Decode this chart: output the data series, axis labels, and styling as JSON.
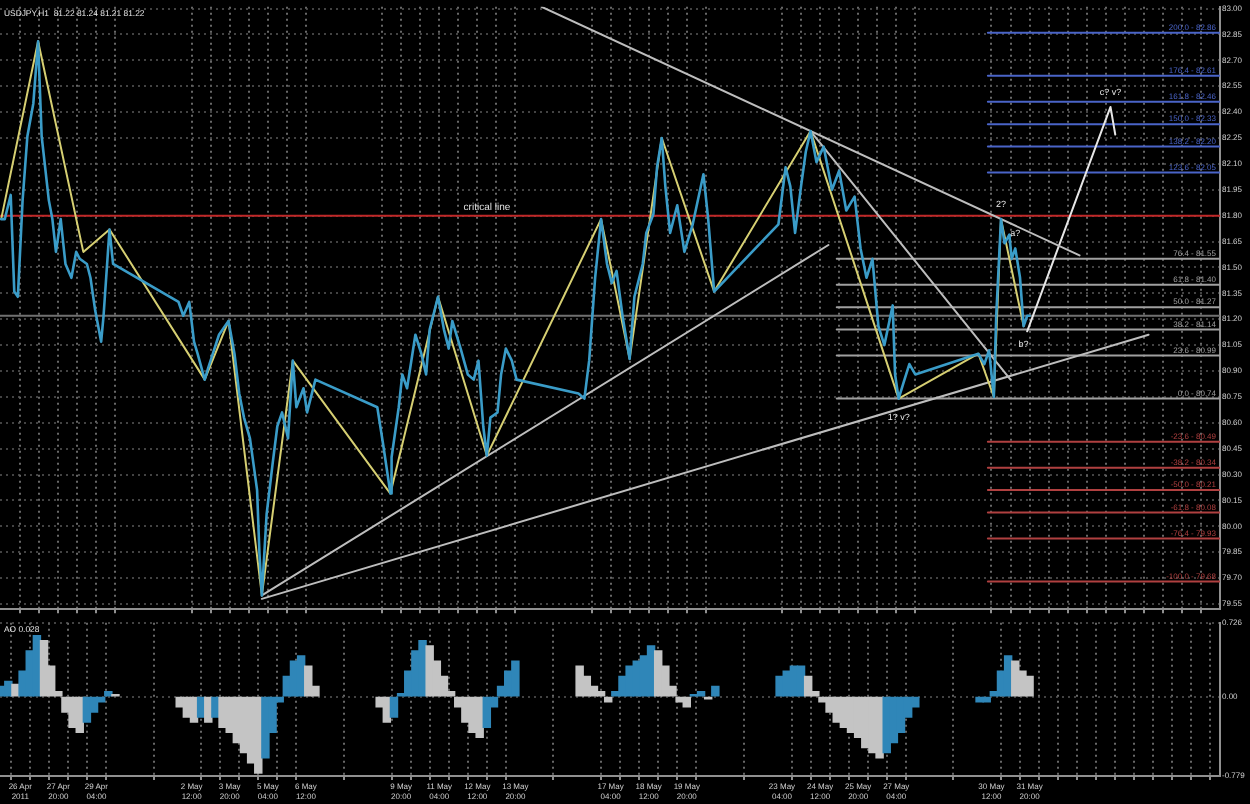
{
  "chart_data": [
    {
      "type": "line",
      "title": "USDJPY,H1  81.22 81.24 81.21 81.22",
      "tick_labels": "y",
      "grid": true,
      "marker": "none",
      "xlim": [
        "2011-04-25T19:00",
        "2011-06-07T12:00"
      ],
      "xticks": [
        {
          "value": "2011-04-26T12:00",
          "label": null
        },
        {
          "value": "2011-04-27T04:00",
          "label": null
        },
        {
          "value": "2011-04-27T20:00",
          "label": null
        },
        {
          "value": "2011-04-28T12:00",
          "label": null
        },
        {
          "value": "2011-04-29T04:00",
          "label": null
        },
        {
          "value": "2011-04-29T20:00",
          "label": null
        },
        {
          "value": "2011-05-02T12:00",
          "label": null
        },
        {
          "value": "2011-05-03T04:00",
          "label": null
        },
        {
          "value": "2011-05-03T20:00",
          "label": null
        },
        {
          "value": "2011-05-04T12:00",
          "label": null
        },
        {
          "value": "2011-05-05T04:00",
          "label": null
        },
        {
          "value": "2011-05-05T20:00",
          "label": null
        },
        {
          "value": "2011-05-06T12:00",
          "label": null
        },
        {
          "value": "2011-05-09T04:00",
          "label": null
        },
        {
          "value": "2011-05-09T20:00",
          "label": null
        },
        {
          "value": "2011-05-10T12:00",
          "label": null
        },
        {
          "value": "2011-05-11T04:00",
          "label": null
        },
        {
          "value": "2011-05-11T20:00",
          "label": null
        },
        {
          "value": "2011-05-12T12:00",
          "label": null
        },
        {
          "value": "2011-05-13T04:00",
          "label": null
        },
        {
          "value": "2011-05-13T20:00",
          "label": null
        },
        {
          "value": "2011-05-16T12:00",
          "label": null
        },
        {
          "value": "2011-05-17T04:00",
          "label": null
        },
        {
          "value": "2011-05-17T20:00",
          "label": null
        },
        {
          "value": "2011-05-18T12:00",
          "label": null
        },
        {
          "value": "2011-05-19T04:00",
          "label": null
        },
        {
          "value": "2011-05-19T20:00",
          "label": null
        },
        {
          "value": "2011-05-20T12:00",
          "label": null
        },
        {
          "value": "2011-05-23T04:00",
          "label": null
        },
        {
          "value": "2011-05-23T20:00",
          "label": null
        },
        {
          "value": "2011-05-24T12:00",
          "label": null
        },
        {
          "value": "2011-05-25T04:00",
          "label": null
        },
        {
          "value": "2011-05-25T20:00",
          "label": null
        },
        {
          "value": "2011-05-26T12:00",
          "label": null
        },
        {
          "value": "2011-05-27T04:00",
          "label": null
        },
        {
          "value": "2011-05-27T20:00",
          "label": null
        },
        {
          "value": "2011-05-30T12:00",
          "label": null
        },
        {
          "value": "2011-05-31T04:00",
          "label": null
        },
        {
          "value": "2011-05-31T20:00",
          "label": null
        },
        {
          "value": "2011-06-01T12:00",
          "label": null
        },
        {
          "value": "2011-06-02T04:00",
          "label": null
        },
        {
          "value": "2011-06-02T20:00",
          "label": null
        },
        {
          "value": "2011-06-03T12:00",
          "label": null
        },
        {
          "value": "2011-06-04T04:00",
          "label": null
        },
        {
          "value": "2011-06-04T20:00",
          "label": null
        },
        {
          "value": "2011-06-05T12:00",
          "label": null
        },
        {
          "value": "2011-06-06T04:00",
          "label": null
        },
        {
          "value": "2011-06-06T20:00",
          "label": null
        }
      ],
      "ylim": [
        79.52,
        83.01
      ],
      "yticks": [
        79.55,
        {
          "value": 79.7,
          "label": "79.70"
        },
        79.85,
        {
          "value": 80,
          "label": "80.00"
        },
        80.15,
        {
          "value": 80.3,
          "label": "80.30"
        },
        80.45,
        {
          "value": 80.6,
          "label": "80.60"
        },
        80.75,
        {
          "value": 80.9,
          "label": "80.90"
        },
        81.05,
        {
          "value": 81.2,
          "label": "81.20"
        },
        81.35,
        {
          "value": 81.5,
          "label": "81.50"
        },
        81.65,
        {
          "value": 81.8,
          "label": "81.80"
        },
        81.95,
        {
          "value": 82.1,
          "label": "82.10"
        },
        82.25,
        {
          "value": 82.4,
          "label": "82.40"
        },
        82.55,
        {
          "value": 82.7,
          "label": "82.70"
        },
        82.85,
        {
          "value": 83,
          "label": "83.00"
        }
      ],
      "series": [
        {
          "color": "#3a9cc8",
          "x": [
            "2011-04-25T20:00",
            "2011-04-25T23:00",
            "2011-04-26T04:00",
            "2011-04-26T07:00",
            "2011-04-26T10:00",
            "2011-04-26T14:00",
            "2011-04-26T18:00",
            "2011-04-26T23:00",
            "2011-04-27T03:00",
            "2011-04-27T06:00",
            "2011-04-27T12:00",
            "2011-04-27T15:00",
            "2011-04-27T18:00",
            "2011-04-27T22:00",
            "2011-04-28T02:00",
            "2011-04-28T07:00",
            "2011-04-28T11:00",
            "2011-04-28T14:00",
            "2011-04-28T20:00",
            "2011-04-28T23:00",
            "2011-04-29T03:00",
            "2011-04-29T08:00",
            "2011-04-29T10:00",
            "2011-04-29T15:00",
            "2011-04-29T18:00",
            "2011-05-02T01:00",
            "2011-05-02T05:00",
            "2011-05-02T10:00",
            "2011-05-02T14:00",
            "2011-05-02T17:00",
            "2011-05-02T23:00",
            "2011-05-03T02:00",
            "2011-05-03T11:00",
            "2011-05-03T19:00",
            "2011-05-04T00:00",
            "2011-05-04T04:00",
            "2011-05-04T08:00",
            "2011-05-04T13:00",
            "2011-05-04T19:00",
            "2011-05-04T21:00",
            "2011-05-04T23:00",
            "2011-05-05T03:00",
            "2011-05-05T08:00",
            "2011-05-05T12:00",
            "2011-05-05T16:00",
            "2011-05-05T21:00",
            "2011-05-06T01:00",
            "2011-05-06T04:00",
            "2011-05-06T10:00",
            "2011-05-06T13:00",
            "2011-05-06T20:00",
            "2011-05-09T00:00",
            "2011-05-09T05:00",
            "2011-05-09T11:00",
            "2011-05-09T12:00",
            "2011-05-09T18:00",
            "2011-05-09T21:00",
            "2011-05-10T01:00",
            "2011-05-10T08:00",
            "2011-05-10T13:00",
            "2011-05-10T17:00",
            "2011-05-10T20:00",
            "2011-05-11T03:00",
            "2011-05-11T08:00",
            "2011-05-11T12:00",
            "2011-05-11T15:00",
            "2011-05-11T22:00",
            "2011-05-12T04:00",
            "2011-05-12T09:00",
            "2011-05-12T13:00",
            "2011-05-12T17:00",
            "2011-05-12T20:00",
            "2011-05-12T23:00",
            "2011-05-13T05:00",
            "2011-05-13T08:00",
            "2011-05-13T12:00",
            "2011-05-13T17:00",
            "2011-05-13T21:00",
            "2011-05-16T01:00",
            "2011-05-16T06:00",
            "2011-05-16T10:00",
            "2011-05-16T15:00",
            "2011-05-16T20:00",
            "2011-05-17T01:00",
            "2011-05-17T05:00",
            "2011-05-17T09:00",
            "2011-05-17T14:00",
            "2011-05-17T20:00",
            "2011-05-18T00:00",
            "2011-05-18T07:00",
            "2011-05-18T10:00",
            "2011-05-18T16:00",
            "2011-05-18T19:00",
            "2011-05-18T23:00",
            "2011-05-19T02:00",
            "2011-05-19T06:00",
            "2011-05-19T12:00",
            "2011-05-19T18:00",
            "2011-05-20T01:00",
            "2011-05-20T10:00",
            "2011-05-20T14:00",
            "2011-05-20T19:00",
            "2011-05-23T01:00",
            "2011-05-23T07:00",
            "2011-05-23T11:00",
            "2011-05-23T15:00",
            "2011-05-23T20:00",
            "2011-05-24T00:00",
            "2011-05-24T04:00",
            "2011-05-24T09:00",
            "2011-05-24T15:00",
            "2011-05-24T22:00",
            "2011-05-25T04:00",
            "2011-05-25T10:00",
            "2011-05-25T17:00",
            "2011-05-25T22:00",
            "2011-05-26T03:00",
            "2011-05-26T08:00",
            "2011-05-26T13:00",
            "2011-05-26T18:00",
            "2011-05-27T01:00",
            "2011-05-27T03:00",
            "2011-05-27T06:00",
            "2011-05-27T10:00",
            "2011-05-27T15:00",
            "2011-05-27T20:00",
            "2011-05-30T01:00",
            "2011-05-30T06:00",
            "2011-05-30T10:00",
            "2011-05-30T14:00",
            "2011-05-30T16:00",
            "2011-05-30T20:00",
            "2011-05-30T23:00",
            "2011-05-31T03:00",
            "2011-05-31T05:00",
            "2011-05-31T08:00",
            "2011-05-31T12:00",
            "2011-05-31T15:00",
            "2011-05-31T18:00",
            "2011-05-31T20:00"
          ],
          "values": [
            81.78,
            81.78,
            81.92,
            81.36,
            81.33,
            81.89,
            82.26,
            82.45,
            82.81,
            82.26,
            81.89,
            81.78,
            81.59,
            81.78,
            81.52,
            81.44,
            81.59,
            81.55,
            81.52,
            81.44,
            81.25,
            81.07,
            81.22,
            81.72,
            81.52,
            81.3,
            81.22,
            81.3,
            81.07,
            81.0,
            80.85,
            80.92,
            81.11,
            81.19,
            81.0,
            80.77,
            80.63,
            80.51,
            80.21,
            79.84,
            79.6,
            80.07,
            80.36,
            80.58,
            80.66,
            80.51,
            80.96,
            80.69,
            80.8,
            80.66,
            80.85,
            80.69,
            80.47,
            80.19,
            80.4,
            80.69,
            80.88,
            80.8,
            81.11,
            81.0,
            80.88,
            81.14,
            81.33,
            81.14,
            81.03,
            81.19,
            81.03,
            80.88,
            80.85,
            80.96,
            80.58,
            80.41,
            80.63,
            80.66,
            80.88,
            81.03,
            80.96,
            80.85,
            80.77,
            80.74,
            80.96,
            81.44,
            81.78,
            81.52,
            81.41,
            81.48,
            81.22,
            80.97,
            81.33,
            81.52,
            81.7,
            81.81,
            82.08,
            82.25,
            81.97,
            81.7,
            81.86,
            81.59,
            81.75,
            82.04,
            81.78,
            81.36,
            81.75,
            82.08,
            81.97,
            81.7,
            81.97,
            82.17,
            82.29,
            82.11,
            82.2,
            81.95,
            82.06,
            81.83,
            81.91,
            81.61,
            81.44,
            81.55,
            81.16,
            81.05,
            81.28,
            80.88,
            80.74,
            80.83,
            80.94,
            80.88,
            81.0,
            80.94,
            81.02,
            80.75,
            81.22,
            81.78,
            81.64,
            81.69,
            81.55,
            81.61,
            81.44,
            81.16,
            81.22,
            81.22
          ]
        },
        {
          "color": "#d6cf72",
          "x": [
            "2011-04-25T20:00",
            "2011-04-27T03:00",
            "2011-04-28T17:00",
            "2011-04-29T15:00",
            "2011-05-02T23:00",
            "2011-05-03T19:00",
            "2011-05-04T23:00",
            "2011-05-06T01:00",
            "2011-05-09T11:00",
            "2011-05-11T03:00",
            "2011-05-12T20:00",
            "2011-05-16T20:00",
            "2011-05-17T20:00",
            "2011-05-18T23:00",
            "2011-05-20T19:00",
            "2011-05-24T04:00",
            "2011-05-27T06:00",
            "2011-05-30T01:00",
            "2011-05-30T14:00",
            "2011-05-30T20:00",
            "2011-05-31T15:00"
          ],
          "values": [
            81.78,
            82.81,
            81.59,
            81.72,
            80.85,
            81.19,
            79.6,
            80.96,
            80.19,
            81.33,
            80.41,
            81.78,
            80.97,
            82.25,
            81.36,
            82.29,
            80.74,
            81.0,
            80.75,
            81.78,
            81.16
          ]
        },
        {
          "color": "#bdbdbd",
          "x": [
            "2011-05-14T18:00",
            "2011-06-02T14:00"
          ],
          "values": [
            83.01,
            81.57
          ]
        },
        {
          "color": "#bdbdbd",
          "x": [
            "2011-05-04T23:00",
            "2011-06-05T00:00"
          ],
          "values": [
            79.58,
            81.11
          ]
        },
        {
          "color": "#bdbdbd",
          "x": [
            "2011-05-04T23:00",
            "2011-05-24T19:00"
          ],
          "values": [
            79.6,
            81.63
          ]
        },
        {
          "color": "#bdbdbd",
          "x": [
            "2011-05-24T04:00",
            "2011-05-31T04:00"
          ],
          "values": [
            82.29,
            80.85
          ]
        },
        {
          "color": "#e6e6e6",
          "x": [
            "2011-05-31T18:00",
            "2011-06-03T16:00",
            "2011-06-03T20:00"
          ],
          "values": [
            81.13,
            82.43,
            82.27
          ]
        },
        {
          "name": "200.0 - 82.86",
          "color": "#4a64c8",
          "x": [
            "2011-05-30T09:00",
            "2011-06-07T12:00"
          ],
          "values": [
            82.86,
            82.86
          ]
        },
        {
          "name": "176.4 - 82.61",
          "color": "#4a64c8",
          "x": [
            "2011-05-30T09:00",
            "2011-06-07T12:00"
          ],
          "values": [
            82.61,
            82.61
          ]
        },
        {
          "name": "161.8 - 82.46",
          "color": "#4a64c8",
          "x": [
            "2011-05-30T09:00",
            "2011-06-07T12:00"
          ],
          "values": [
            82.46,
            82.46
          ]
        },
        {
          "name": "150.0 - 82.33",
          "color": "#4a64c8",
          "x": [
            "2011-05-30T09:00",
            "2011-06-07T12:00"
          ],
          "values": [
            82.33,
            82.33
          ]
        },
        {
          "name": "138.2 - 82.20",
          "color": "#4a64c8",
          "x": [
            "2011-05-30T09:00",
            "2011-06-07T12:00"
          ],
          "values": [
            82.2,
            82.2
          ]
        },
        {
          "name": "123.6 - 82.05",
          "color": "#4a64c8",
          "x": [
            "2011-05-30T09:00",
            "2011-06-07T12:00"
          ],
          "values": [
            82.05,
            82.05
          ]
        },
        {
          "name": "76.4 - 81.55",
          "color": "#a0a0a0",
          "x": [
            "2011-05-25T02:00",
            "2011-06-07T12:00"
          ],
          "values": [
            81.55,
            81.55
          ]
        },
        {
          "name": "61.8 - 81.40",
          "color": "#a0a0a0",
          "x": [
            "2011-05-25T02:00",
            "2011-06-07T12:00"
          ],
          "values": [
            81.4,
            81.4
          ]
        },
        {
          "name": "50.0 - 81.27",
          "color": "#a0a0a0",
          "x": [
            "2011-05-25T02:00",
            "2011-06-07T12:00"
          ],
          "values": [
            81.27,
            81.27
          ]
        },
        {
          "name": "38.2 - 81.14",
          "color": "#a0a0a0",
          "x": [
            "2011-05-25T02:00",
            "2011-06-07T12:00"
          ],
          "values": [
            81.14,
            81.14
          ]
        },
        {
          "name": "23.6 - 80.99",
          "color": "#a0a0a0",
          "x": [
            "2011-05-25T02:00",
            "2011-06-07T12:00"
          ],
          "values": [
            80.99,
            80.99
          ]
        },
        {
          "name": "0.0 - 80.74",
          "color": "#a0a0a0",
          "x": [
            "2011-05-25T02:00",
            "2011-06-07T12:00"
          ],
          "values": [
            80.74,
            80.74
          ]
        },
        {
          "name": "-23.6 - 80.49",
          "color": "#b04040",
          "x": [
            "2011-05-30T09:00",
            "2011-06-07T12:00"
          ],
          "values": [
            80.49,
            80.49
          ]
        },
        {
          "name": "-38.2 - 80.34",
          "color": "#b04040",
          "x": [
            "2011-05-30T09:00",
            "2011-06-07T12:00"
          ],
          "values": [
            80.34,
            80.34
          ]
        },
        {
          "name": "-50.0 - 80.21",
          "color": "#b04040",
          "x": [
            "2011-05-30T09:00",
            "2011-06-07T12:00"
          ],
          "values": [
            80.21,
            80.21
          ]
        },
        {
          "name": "-61.8 - 80.08",
          "color": "#b04040",
          "x": [
            "2011-05-30T09:00",
            "2011-06-07T12:00"
          ],
          "values": [
            80.08,
            80.08
          ]
        },
        {
          "name": "-76.4 - 79.93",
          "color": "#b04040",
          "x": [
            "2011-05-30T09:00",
            "2011-06-07T12:00"
          ],
          "values": [
            79.93,
            79.93
          ]
        },
        {
          "name": "-100.0 - 79.68",
          "color": "#b04040",
          "x": [
            "2011-05-30T09:00",
            "2011-06-07T12:00"
          ],
          "values": [
            79.68,
            79.68
          ]
        }
      ],
      "ref_lines": [
        {
          "axis": "y",
          "value": 81.8,
          "label": "critical line",
          "color": "#c02828"
        },
        {
          "axis": "y",
          "value": 81.22,
          "color": "#707070"
        }
      ],
      "annotations": [
        {
          "text": "1? v?",
          "x": "2011-05-27T06:00",
          "y": 80.74
        },
        {
          "text": "2?",
          "x": "2011-05-30T20:00",
          "y": 81.78
        },
        {
          "text": "a?",
          "x": "2011-05-31T08:00",
          "y": 81.61
        },
        {
          "text": "b?",
          "x": "2011-05-31T15:00",
          "y": 81.16
        },
        {
          "text": "c? v?",
          "x": "2011-06-03T16:00",
          "y": 82.43
        }
      ]
    },
    {
      "type": "bar",
      "title": "AO 0.028",
      "grid": true,
      "xlim": [
        "2011-04-25T19:00",
        "2011-06-07T12:00"
      ],
      "xticks": [
        {
          "value": "2011-04-26T12:00",
          "label": "26 Apr 2011"
        },
        {
          "value": "2011-04-27T04:00",
          "label": null
        },
        {
          "value": "2011-04-27T20:00",
          "label": "27 Apr 20:00"
        },
        {
          "value": "2011-04-28T12:00",
          "label": null
        },
        {
          "value": "2011-04-29T04:00",
          "label": "29 Apr 04:00"
        },
        {
          "value": "2011-04-29T20:00",
          "label": null
        },
        {
          "value": "2011-05-02T12:00",
          "label": "2 May 12:00"
        },
        {
          "value": "2011-05-03T04:00",
          "label": null
        },
        {
          "value": "2011-05-03T20:00",
          "label": "3 May 20:00"
        },
        {
          "value": "2011-05-04T12:00",
          "label": null
        },
        {
          "value": "2011-05-05T04:00",
          "label": "5 May 04:00"
        },
        {
          "value": "2011-05-05T20:00",
          "label": null
        },
        {
          "value": "2011-05-06T12:00",
          "label": "6 May 12:00"
        },
        {
          "value": "2011-05-09T04:00",
          "label": null
        },
        {
          "value": "2011-05-09T20:00",
          "label": "9 May 20:00"
        },
        {
          "value": "2011-05-10T12:00",
          "label": null
        },
        {
          "value": "2011-05-11T04:00",
          "label": "11 May 04:00"
        },
        {
          "value": "2011-05-11T20:00",
          "label": null
        },
        {
          "value": "2011-05-12T12:00",
          "label": "12 May 12:00"
        },
        {
          "value": "2011-05-13T04:00",
          "label": null
        },
        {
          "value": "2011-05-13T20:00",
          "label": "13 May 20:00"
        },
        {
          "value": "2011-05-16T12:00",
          "label": null
        },
        {
          "value": "2011-05-17T04:00",
          "label": "17 May 04:00"
        },
        {
          "value": "2011-05-17T20:00",
          "label": null
        },
        {
          "value": "2011-05-18T12:00",
          "label": "18 May 12:00"
        },
        {
          "value": "2011-05-19T04:00",
          "label": null
        },
        {
          "value": "2011-05-19T20:00",
          "label": "19 May 20:00"
        },
        {
          "value": "2011-05-20T12:00",
          "label": null
        },
        {
          "value": "2011-05-23T04:00",
          "label": "23 May 04:00"
        },
        {
          "value": "2011-05-23T20:00",
          "label": null
        },
        {
          "value": "2011-05-24T12:00",
          "label": "24 May 12:00"
        },
        {
          "value": "2011-05-25T04:00",
          "label": null
        },
        {
          "value": "2011-05-25T20:00",
          "label": "25 May 20:00"
        },
        {
          "value": "2011-05-26T12:00",
          "label": null
        },
        {
          "value": "2011-05-27T04:00",
          "label": "27 May 04:00"
        },
        {
          "value": "2011-05-27T20:00",
          "label": null
        },
        {
          "value": "2011-05-30T12:00",
          "label": "30 May 12:00"
        },
        {
          "value": "2011-05-31T04:00",
          "label": null
        },
        {
          "value": "2011-05-31T20:00",
          "label": "31 May 20:00"
        },
        {
          "value": "2011-06-01T12:00",
          "label": null
        },
        {
          "value": "2011-06-02T04:00",
          "label": null
        },
        {
          "value": "2011-06-02T20:00",
          "label": null
        },
        {
          "value": "2011-06-03T12:00",
          "label": null
        },
        {
          "value": "2011-06-04T04:00",
          "label": null
        },
        {
          "value": "2011-06-04T20:00",
          "label": null
        },
        {
          "value": "2011-06-05T12:00",
          "label": null
        },
        {
          "value": "2011-06-06T04:00",
          "label": null
        },
        {
          "value": "2011-06-06T20:00",
          "label": null
        }
      ],
      "ylim": [
        -0.779,
        0.726
      ],
      "yticks": [
        0.726,
        {
          "value": 0,
          "label": "0.00"
        },
        -0.779
      ],
      "x": [
        "2011-04-25T20:00",
        "2011-04-26T02:00",
        "2011-04-26T08:00",
        "2011-04-26T14:00",
        "2011-04-26T20:00",
        "2011-04-27T02:00",
        "2011-04-27T08:00",
        "2011-04-27T14:00",
        "2011-04-27T20:00",
        "2011-04-28T02:00",
        "2011-04-28T08:00",
        "2011-04-28T14:00",
        "2011-04-28T20:00",
        "2011-04-29T02:00",
        "2011-04-29T08:00",
        "2011-04-29T14:00",
        "2011-04-29T20:00",
        "2011-05-02T02:00",
        "2011-05-02T08:00",
        "2011-05-02T14:00",
        "2011-05-02T20:00",
        "2011-05-03T02:00",
        "2011-05-03T08:00",
        "2011-05-03T14:00",
        "2011-05-03T20:00",
        "2011-05-04T02:00",
        "2011-05-04T08:00",
        "2011-05-04T14:00",
        "2011-05-04T20:00",
        "2011-05-05T02:00",
        "2011-05-05T08:00",
        "2011-05-05T14:00",
        "2011-05-05T20:00",
        "2011-05-06T02:00",
        "2011-05-06T08:00",
        "2011-05-06T14:00",
        "2011-05-06T20:00",
        "2011-05-09T02:00",
        "2011-05-09T08:00",
        "2011-05-09T14:00",
        "2011-05-09T20:00",
        "2011-05-10T02:00",
        "2011-05-10T08:00",
        "2011-05-10T14:00",
        "2011-05-10T20:00",
        "2011-05-11T02:00",
        "2011-05-11T08:00",
        "2011-05-11T14:00",
        "2011-05-11T20:00",
        "2011-05-12T02:00",
        "2011-05-12T08:00",
        "2011-05-12T14:00",
        "2011-05-12T20:00",
        "2011-05-13T02:00",
        "2011-05-13T08:00",
        "2011-05-13T14:00",
        "2011-05-13T20:00",
        "2011-05-16T02:00",
        "2011-05-16T08:00",
        "2011-05-16T14:00",
        "2011-05-16T20:00",
        "2011-05-17T02:00",
        "2011-05-17T08:00",
        "2011-05-17T14:00",
        "2011-05-17T20:00",
        "2011-05-18T02:00",
        "2011-05-18T08:00",
        "2011-05-18T14:00",
        "2011-05-18T20:00",
        "2011-05-19T02:00",
        "2011-05-19T08:00",
        "2011-05-19T14:00",
        "2011-05-19T20:00",
        "2011-05-20T02:00",
        "2011-05-20T08:00",
        "2011-05-20T14:00",
        "2011-05-20T20:00",
        "2011-05-23T02:00",
        "2011-05-23T08:00",
        "2011-05-23T14:00",
        "2011-05-23T20:00",
        "2011-05-24T02:00",
        "2011-05-24T08:00",
        "2011-05-24T14:00",
        "2011-05-24T20:00",
        "2011-05-25T02:00",
        "2011-05-25T08:00",
        "2011-05-25T14:00",
        "2011-05-25T20:00",
        "2011-05-26T02:00",
        "2011-05-26T08:00",
        "2011-05-26T14:00",
        "2011-05-26T20:00",
        "2011-05-27T02:00",
        "2011-05-27T08:00",
        "2011-05-27T14:00",
        "2011-05-27T20:00",
        "2011-05-30T02:00",
        "2011-05-30T08:00",
        "2011-05-30T14:00",
        "2011-05-30T20:00",
        "2011-05-31T02:00",
        "2011-05-31T08:00",
        "2011-05-31T14:00",
        "2011-05-31T20:00"
      ],
      "values": [
        0.1,
        0.15,
        0.12,
        0.25,
        0.45,
        0.6,
        0.55,
        0.3,
        0.05,
        -0.15,
        -0.3,
        -0.35,
        -0.25,
        -0.15,
        -0.05,
        0.05,
        0.02,
        -0.1,
        -0.2,
        -0.25,
        -0.2,
        -0.25,
        -0.2,
        -0.3,
        -0.35,
        -0.45,
        -0.55,
        -0.65,
        -0.75,
        -0.6,
        -0.35,
        -0.05,
        0.2,
        0.35,
        0.4,
        0.3,
        0.1,
        -0.1,
        -0.25,
        -0.2,
        0.03,
        0.25,
        0.45,
        0.55,
        0.5,
        0.35,
        0.2,
        0.05,
        -0.1,
        -0.25,
        -0.35,
        -0.4,
        -0.3,
        -0.1,
        0.1,
        0.25,
        0.35,
        0.3,
        0.2,
        0.1,
        0.05,
        -0.05,
        0.05,
        0.2,
        0.3,
        0.35,
        0.4,
        0.5,
        0.45,
        0.3,
        0.1,
        -0.05,
        -0.1,
        0.02,
        0.05,
        -0.02,
        0.1,
        0.2,
        0.25,
        0.3,
        0.3,
        0.2,
        0.05,
        -0.05,
        -0.15,
        -0.25,
        -0.3,
        -0.35,
        -0.4,
        -0.5,
        -0.55,
        -0.6,
        -0.55,
        -0.45,
        -0.35,
        -0.2,
        -0.1,
        -0.05,
        -0.05,
        0.05,
        0.25,
        0.4,
        0.35,
        0.25,
        0.2
      ],
      "colors": [
        "#2f86b8",
        "#2f86b8",
        "#c4c4c4",
        "#2f86b8",
        "#2f86b8",
        "#2f86b8",
        "#c4c4c4",
        "#c4c4c4",
        "#c4c4c4",
        "#c4c4c4",
        "#c4c4c4",
        "#c4c4c4",
        "#2f86b8",
        "#2f86b8",
        "#2f86b8",
        "#2f86b8",
        "#c4c4c4",
        "#c4c4c4",
        "#c4c4c4",
        "#c4c4c4",
        "#2f86b8",
        "#c4c4c4",
        "#2f86b8",
        "#c4c4c4",
        "#c4c4c4",
        "#c4c4c4",
        "#c4c4c4",
        "#c4c4c4",
        "#c4c4c4",
        "#2f86b8",
        "#2f86b8",
        "#2f86b8",
        "#2f86b8",
        "#2f86b8",
        "#2f86b8",
        "#c4c4c4",
        "#c4c4c4",
        "#c4c4c4",
        "#c4c4c4",
        "#2f86b8",
        "#2f86b8",
        "#2f86b8",
        "#2f86b8",
        "#2f86b8",
        "#c4c4c4",
        "#c4c4c4",
        "#c4c4c4",
        "#c4c4c4",
        "#c4c4c4",
        "#c4c4c4",
        "#c4c4c4",
        "#c4c4c4",
        "#2f86b8",
        "#2f86b8",
        "#2f86b8",
        "#2f86b8",
        "#2f86b8",
        "#c4c4c4",
        "#c4c4c4",
        "#c4c4c4",
        "#c4c4c4",
        "#c4c4c4",
        "#2f86b8",
        "#2f86b8",
        "#2f86b8",
        "#2f86b8",
        "#2f86b8",
        "#2f86b8",
        "#c4c4c4",
        "#c4c4c4",
        "#c4c4c4",
        "#c4c4c4",
        "#c4c4c4",
        "#2f86b8",
        "#2f86b8",
        "#c4c4c4",
        "#2f86b8",
        "#2f86b8",
        "#2f86b8",
        "#2f86b8",
        "#2f86b8",
        "#c4c4c4",
        "#c4c4c4",
        "#c4c4c4",
        "#c4c4c4",
        "#c4c4c4",
        "#c4c4c4",
        "#c4c4c4",
        "#c4c4c4",
        "#c4c4c4",
        "#c4c4c4",
        "#c4c4c4",
        "#2f86b8",
        "#2f86b8",
        "#2f86b8",
        "#2f86b8",
        "#2f86b8",
        "#2f86b8",
        "#2f86b8",
        "#2f86b8",
        "#2f86b8",
        "#2f86b8",
        "#c4c4c4",
        "#c4c4c4",
        "#c4c4c4"
      ]
    }
  ]
}
